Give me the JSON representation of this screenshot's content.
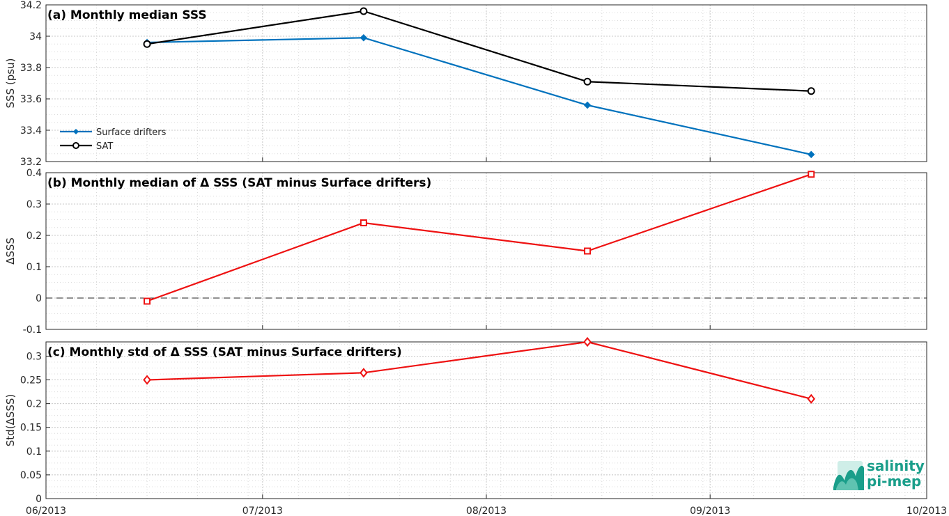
{
  "chart_data": [
    {
      "type": "line",
      "title": "(a) Monthly median SSS",
      "ylabel": "SSS (psu)",
      "xlabel": "",
      "xlim": [
        "06/2013",
        "10/2013"
      ],
      "ylim": [
        33.2,
        34.2
      ],
      "yticks": [
        "33.2",
        "33.4",
        "33.6",
        "33.8",
        "34",
        "34.2"
      ],
      "grid": true,
      "legend_position": "bottom-left",
      "x": [
        "2013-06-15",
        "2013-07-15",
        "2013-08-15",
        "2013-09-15"
      ],
      "series": [
        {
          "name": "Surface drifters",
          "color": "#0072bd",
          "marker": "diamond",
          "values": [
            33.96,
            33.99,
            33.56,
            33.245
          ]
        },
        {
          "name": "SAT",
          "color": "#000000",
          "marker": "circle",
          "values": [
            33.95,
            34.16,
            33.71,
            33.65
          ]
        }
      ]
    },
    {
      "type": "line",
      "title": "(b) Monthly median of Δ SSS (SAT minus Surface drifters)",
      "ylabel": "ΔSSS",
      "xlabel": "",
      "xlim": [
        "06/2013",
        "10/2013"
      ],
      "ylim": [
        -0.1,
        0.4
      ],
      "yticks": [
        "-0.1",
        "0",
        "0.1",
        "0.2",
        "0.3",
        "0.4"
      ],
      "grid": true,
      "reference_line": 0,
      "x": [
        "2013-06-15",
        "2013-07-15",
        "2013-08-15",
        "2013-09-15"
      ],
      "series": [
        {
          "color": "#ee1111",
          "marker": "square",
          "values": [
            -0.01,
            0.24,
            0.15,
            0.395
          ]
        }
      ]
    },
    {
      "type": "line",
      "title": "(c) Monthly std of Δ SSS (SAT minus Surface drifters)",
      "ylabel": "Std(ΔSSS)",
      "xlabel": "",
      "xlim": [
        "06/2013",
        "10/2013"
      ],
      "ylim": [
        0,
        0.33
      ],
      "yticks": [
        "0",
        "0.05",
        "0.1",
        "0.15",
        "0.2",
        "0.25",
        "0.3"
      ],
      "grid": true,
      "x": [
        "2013-06-15",
        "2013-07-15",
        "2013-08-15",
        "2013-09-15"
      ],
      "series": [
        {
          "color": "#ee1111",
          "marker": "diamond-open",
          "values": [
            0.25,
            0.265,
            0.33,
            0.21
          ]
        }
      ]
    }
  ],
  "xticks": [
    "06/2013",
    "07/2013",
    "08/2013",
    "09/2013",
    "10/2013"
  ],
  "logo": {
    "line1": "salinity",
    "line2": "pi-mep"
  }
}
